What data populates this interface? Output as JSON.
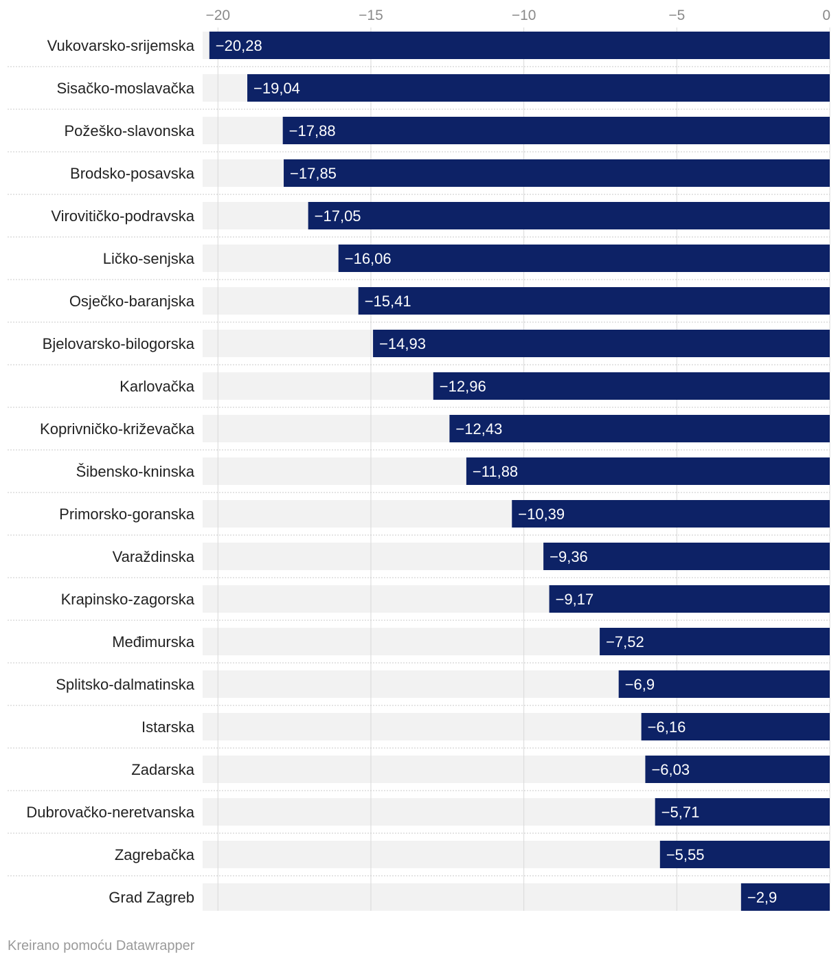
{
  "chart_data": {
    "type": "bar",
    "orientation": "horizontal",
    "title": "",
    "xlabel": "",
    "ylabel": "",
    "xlim": [
      -20.5,
      0
    ],
    "ticks": [
      -20,
      -15,
      -10,
      -5,
      0
    ],
    "tick_labels": [
      "−20",
      "−15",
      "−10",
      "−5",
      "0"
    ],
    "grid": true,
    "categories": [
      "Vukovarsko-srijemska",
      "Sisačko-moslavačka",
      "Požeško-slavonska",
      "Brodsko-posavska",
      "Virovitičko-podravska",
      "Ličko-senjska",
      "Osječko-baranjska",
      "Bjelovarsko-bilogorska",
      "Karlovačka",
      "Koprivničko-križevačka",
      "Šibensko-kninska",
      "Primorsko-goranska",
      "Varaždinska",
      "Krapinsko-zagorska",
      "Međimurska",
      "Splitsko-dalmatinska",
      "Istarska",
      "Zadarska",
      "Dubrovačko-neretvanska",
      "Zagrebačka",
      "Grad Zagreb"
    ],
    "values": [
      -20.28,
      -19.04,
      -17.88,
      -17.85,
      -17.05,
      -16.06,
      -15.41,
      -14.93,
      -12.96,
      -12.43,
      -11.88,
      -10.39,
      -9.36,
      -9.17,
      -7.52,
      -6.9,
      -6.16,
      -6.03,
      -5.71,
      -5.55,
      -2.9
    ],
    "value_labels": [
      "−20,28",
      "−19,04",
      "−17,88",
      "−17,85",
      "−17,05",
      "−16,06",
      "−15,41",
      "−14,93",
      "−12,96",
      "−12,43",
      "−11,88",
      "−10,39",
      "−9,36",
      "−9,17",
      "−7,52",
      "−6,9",
      "−6,16",
      "−6,03",
      "−5,71",
      "−5,55",
      "−2,9"
    ],
    "colors": {
      "bar": "#0d2266",
      "track": "#f2f2f2",
      "grid": "#d8d8d8",
      "separator": "#c8c8c8"
    }
  },
  "footer": {
    "credit": "Kreirano pomoću Datawrapper"
  }
}
